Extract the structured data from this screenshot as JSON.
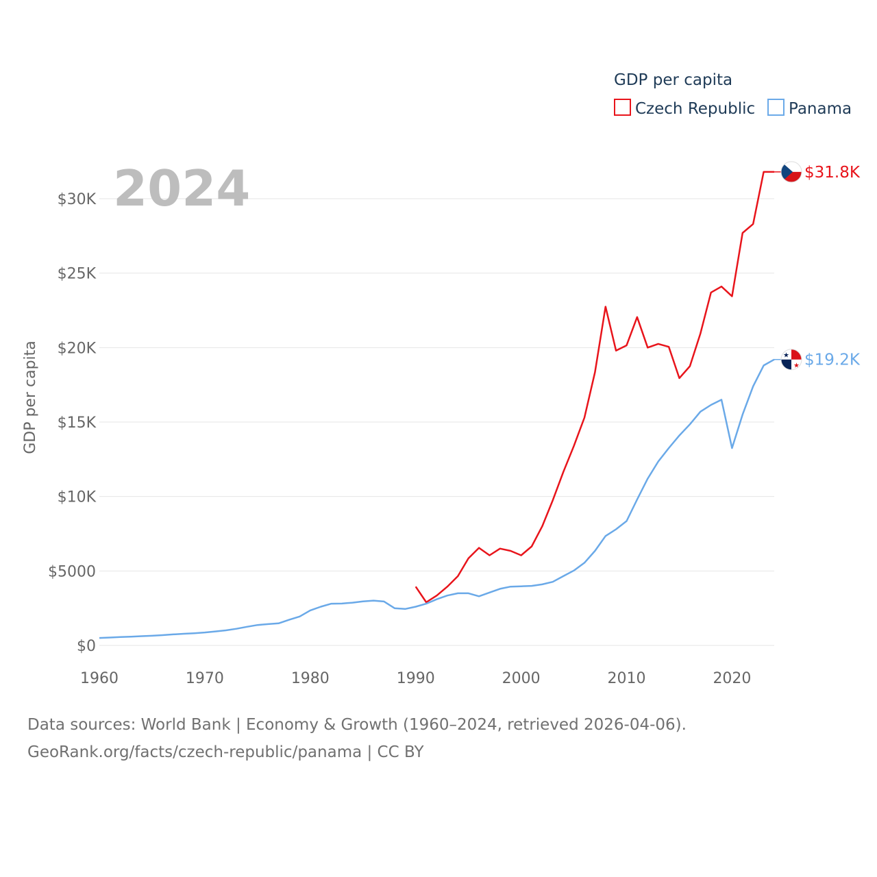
{
  "chart_data": {
    "type": "line",
    "year_label": "2024",
    "legend_title": "GDP per capita",
    "ylabel": "GDP per capita",
    "xlim": [
      1960,
      2024
    ],
    "ylim": [
      0,
      32500
    ],
    "x_ticks": [
      1960,
      1970,
      1980,
      1990,
      2000,
      2010,
      2020
    ],
    "x_tick_labels": [
      "1960",
      "1970",
      "1980",
      "1990",
      "2000",
      "2010",
      "2020"
    ],
    "y_ticks": [
      0,
      5000,
      10000,
      15000,
      20000,
      25000,
      30000
    ],
    "y_tick_labels": [
      "$0",
      "$5000",
      "$10K",
      "$15K",
      "$20K",
      "$25K",
      "$30K"
    ],
    "series": [
      {
        "name": "Czech Republic",
        "color": "#e8141b",
        "end_label": "$31.8K",
        "flag": "czech-flag",
        "x": [
          1990,
          1991,
          1992,
          1993,
          1994,
          1995,
          1996,
          1997,
          1998,
          1999,
          2000,
          2001,
          2002,
          2003,
          2004,
          2005,
          2006,
          2007,
          2008,
          2009,
          2010,
          2011,
          2012,
          2013,
          2014,
          2015,
          2016,
          2017,
          2018,
          2019,
          2020,
          2021,
          2022,
          2023,
          2024
        ],
        "values": [
          3950,
          2900,
          3350,
          3950,
          4650,
          5850,
          6550,
          6050,
          6500,
          6350,
          6050,
          6650,
          8000,
          9750,
          11650,
          13400,
          15300,
          18350,
          22750,
          19800,
          20150,
          22050,
          20000,
          20250,
          20050,
          17950,
          18750,
          20950,
          23700,
          24100,
          23450,
          27700,
          28300,
          31800,
          31800
        ]
      },
      {
        "name": "Panama",
        "color": "#6aa9e8",
        "end_label": "$19.2K",
        "flag": "panama-flag",
        "x": [
          1960,
          1961,
          1962,
          1963,
          1964,
          1965,
          1966,
          1967,
          1968,
          1969,
          1970,
          1971,
          1972,
          1973,
          1974,
          1975,
          1976,
          1977,
          1978,
          1979,
          1980,
          1981,
          1982,
          1983,
          1984,
          1985,
          1986,
          1987,
          1988,
          1989,
          1990,
          1991,
          1992,
          1993,
          1994,
          1995,
          1996,
          1997,
          1998,
          1999,
          2000,
          2001,
          2002,
          2003,
          2004,
          2005,
          2006,
          2007,
          2008,
          2009,
          2010,
          2011,
          2012,
          2013,
          2014,
          2015,
          2016,
          2017,
          2018,
          2019,
          2020,
          2021,
          2022,
          2023,
          2024
        ],
        "values": [
          500,
          530,
          560,
          590,
          620,
          650,
          690,
          740,
          780,
          820,
          870,
          940,
          1010,
          1120,
          1250,
          1370,
          1430,
          1480,
          1720,
          1940,
          2350,
          2600,
          2800,
          2810,
          2870,
          2960,
          3010,
          2950,
          2500,
          2450,
          2600,
          2800,
          3100,
          3350,
          3500,
          3500,
          3300,
          3550,
          3800,
          3950,
          3970,
          4000,
          4100,
          4270,
          4650,
          5030,
          5550,
          6350,
          7350,
          7800,
          8350,
          9800,
          11200,
          12350,
          13250,
          14100,
          14850,
          15700,
          16150,
          16500,
          13250,
          15500,
          17400,
          18800,
          19200
        ]
      }
    ]
  },
  "footer": {
    "line1": "Data sources: World Bank | Economy & Growth (1960–2024, retrieved 2026-04-06).",
    "line2": "GeoRank.org/facts/czech-republic/panama | CC BY"
  }
}
